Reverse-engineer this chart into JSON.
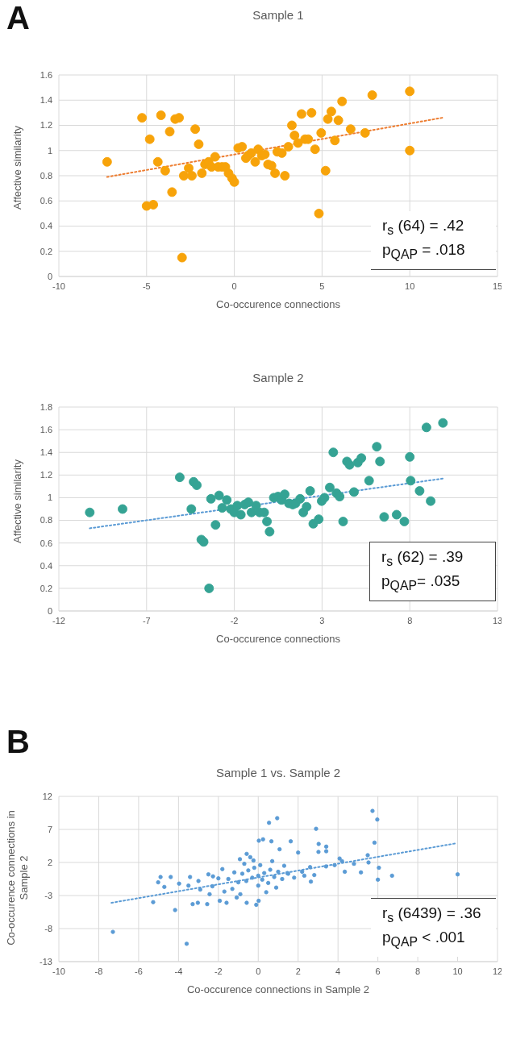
{
  "chart_data": [
    {
      "type": "scatter",
      "title": "Sample 1",
      "xlabel": "Co-occurence connections",
      "ylabel": "Affective similarity",
      "xlim": [
        -10,
        15
      ],
      "xticks": [
        -10,
        -5,
        0,
        5,
        10,
        15
      ],
      "ylim": [
        0,
        1.6
      ],
      "yticks": [
        0,
        0.2,
        0.4,
        0.6,
        0.8,
        1,
        1.2,
        1.4,
        1.6
      ],
      "grid": true,
      "marker": "circle",
      "annotations": [
        "r$_{s}$ (64) = .42",
        "p$_{QAP}$ = .018",
        "A"
      ],
      "series": [
        {
          "color": "#f7a30a",
          "x": [
            -7.25,
            -5.26,
            -5.0,
            -4.82,
            -4.62,
            -4.36,
            -4.18,
            -3.94,
            -3.68,
            -3.55,
            -3.37,
            -3.15,
            -2.98,
            -2.88,
            -2.6,
            -2.42,
            -2.23,
            -2.03,
            -1.85,
            -1.67,
            -1.47,
            -1.3,
            -1.1,
            -0.92,
            -0.7,
            -0.51,
            -0.33,
            -0.13,
            0,
            0.22,
            0.44,
            0.66,
            0.79,
            0.97,
            1.19,
            1.36,
            1.56,
            1.74,
            1.92,
            2.12,
            2.32,
            2.45,
            2.71,
            2.88,
            3.08,
            3.28,
            3.43,
            3.63,
            3.83,
            4.03,
            4.21,
            4.4,
            4.6,
            4.82,
            4.95,
            5.2,
            5.33,
            5.53,
            5.73,
            5.93,
            6.14,
            6.63,
            7.45,
            7.86,
            10,
            10
          ],
          "values": [
            0.91,
            1.26,
            0.56,
            1.09,
            0.57,
            0.91,
            1.28,
            0.84,
            1.15,
            0.67,
            1.25,
            1.26,
            0.15,
            0.8,
            0.86,
            0.8,
            1.17,
            1.05,
            0.82,
            0.89,
            0.91,
            0.87,
            0.95,
            0.87,
            0.87,
            0.87,
            0.82,
            0.78,
            0.75,
            1.02,
            1.03,
            0.94,
            0.96,
            0.98,
            0.91,
            1.01,
            0.96,
            0.97,
            0.89,
            0.88,
            0.82,
            0.99,
            0.98,
            0.8,
            1.03,
            1.2,
            1.12,
            1.06,
            1.29,
            1.09,
            1.09,
            1.3,
            1.01,
            0.5,
            1.14,
            0.84,
            1.25,
            1.31,
            1.08,
            1.24,
            1.39,
            1.17,
            1.14,
            1.44,
            1.47,
            1.0
          ]
        },
        {
          "type": "line",
          "color": "#ed7d31",
          "line_style": "dotted",
          "marker": "none",
          "x": [
            -7.25,
            11.85
          ],
          "values": [
            0.79,
            1.26
          ]
        }
      ]
    },
    {
      "type": "scatter",
      "title": "Sample 2",
      "xlabel": "Co-occurence connections",
      "ylabel": "Affective similarity",
      "xlim": [
        -12,
        13
      ],
      "xticks": [
        -12,
        -7,
        -2,
        3,
        8,
        13
      ],
      "ylim": [
        0,
        1.8
      ],
      "yticks": [
        0,
        0.2,
        0.4,
        0.6,
        0.8,
        1,
        1.2,
        1.4,
        1.6,
        1.8
      ],
      "grid": true,
      "marker": "circle",
      "annotations": [
        "r$_{s}$ (62) = .39",
        "p$_{QAP}$= .035"
      ],
      "series": [
        {
          "color": "#35a394",
          "x": [
            -10.24,
            -8.37,
            -5.11,
            -4.45,
            -4.32,
            -4.14,
            -3.88,
            -3.75,
            -3.44,
            -3.33,
            -3.07,
            -2.87,
            -2.69,
            -2.43,
            -2.2,
            -2.0,
            -1.83,
            -1.63,
            -1.41,
            -1.2,
            -1.02,
            -0.76,
            -0.56,
            -0.3,
            -0.14,
            0.01,
            0.25,
            0.49,
            0.69,
            0.87,
            1.11,
            1.33,
            1.49,
            1.75,
            1.93,
            2.12,
            2.32,
            2.5,
            2.81,
            2.98,
            3.14,
            3.44,
            3.64,
            3.82,
            4.0,
            4.2,
            4.42,
            4.57,
            4.82,
            5.04,
            5.24,
            5.68,
            6.12,
            6.3,
            6.54,
            7.25,
            7.69,
            8.0,
            8.05,
            8.56,
            8.95,
            9.19,
            9.89
          ],
          "values": [
            0.87,
            0.9,
            1.18,
            0.9,
            1.14,
            1.11,
            0.63,
            0.61,
            0.2,
            0.99,
            0.76,
            1.02,
            0.91,
            0.98,
            0.9,
            0.87,
            0.93,
            0.85,
            0.94,
            0.96,
            0.87,
            0.93,
            0.87,
            0.87,
            0.79,
            0.7,
            1.0,
            1.01,
            0.98,
            1.03,
            0.95,
            0.94,
            0.95,
            0.99,
            0.87,
            0.92,
            1.06,
            0.77,
            0.81,
            0.97,
            1.0,
            1.09,
            1.4,
            1.04,
            1.01,
            0.79,
            1.32,
            1.29,
            1.05,
            1.31,
            1.35,
            1.15,
            1.45,
            1.32,
            0.83,
            0.85,
            0.79,
            1.36,
            1.15,
            1.06,
            1.62,
            0.97,
            1.66
          ]
        },
        {
          "type": "line",
          "color": "#5b9bd5",
          "line_style": "dotted",
          "marker": "none",
          "x": [
            -10.24,
            9.93
          ],
          "values": [
            0.73,
            1.17
          ]
        }
      ]
    },
    {
      "type": "scatter",
      "title": "Sample 1 vs. Sample 2",
      "xlabel": "Co-occurence connections in Sample 2",
      "ylabel": "Co-occurence connections in Sample 2",
      "xlim": [
        -10,
        12
      ],
      "xticks": [
        -10,
        -8,
        -6,
        -4,
        -2,
        0,
        2,
        4,
        6,
        8,
        10,
        12
      ],
      "ylim": [
        -13,
        12
      ],
      "yticks": [
        -13,
        -8,
        -3,
        2,
        7,
        12
      ],
      "grid": true,
      "marker": "circle",
      "annotations": [
        "r$_{s}$ (6439) = .36",
        "p$_{QAP}$ < .001",
        "B"
      ],
      "series": [
        {
          "color": "#5b9bd5",
          "x": [
            -7.29,
            -3.59,
            -4.17,
            -5.27,
            -4.9,
            -4.39,
            -5.02,
            -4.71,
            -3.97,
            -3.42,
            -3.29,
            -3.03,
            -2.56,
            -2.91,
            -2.44,
            -1.93,
            -2.27,
            -1.59,
            -1.08,
            -0.58,
            -0.1,
            0.02,
            -0.92,
            -0.58,
            -0.24,
            0.03,
            0.24,
            0.54,
            0.95,
            0.66,
            1.07,
            1.63,
            2.0,
            2.9,
            3.03,
            3.41,
            3.02,
            3.41,
            3.83,
            4.08,
            4.34,
            5.15,
            5.53,
            5.49,
            5.73,
            5.97,
            5.83,
            6.05,
            6.0,
            6.71,
            10.0,
            2.81,
            2.31,
            1.46,
            2.64,
            -1.5,
            -1.2,
            -1.0,
            -0.8,
            -0.6,
            -0.5,
            -0.3,
            -0.2,
            0,
            0,
            0.1,
            0.2,
            0.3,
            0.5,
            0.6,
            0.8,
            1.0,
            1.2,
            1.5,
            1.8,
            2.2,
            -2.0,
            -2.5,
            -1.8,
            -1.3,
            -0.9,
            0.4,
            0.7,
            -0.4,
            0.9,
            2.6,
            3.4,
            4.2,
            4.8,
            -3.5,
            -3.0,
            -2.3,
            -1.7,
            1.3,
            -0.7
          ],
          "values": [
            -8.5,
            -10.3,
            -5.2,
            -4.0,
            -0.2,
            -0.2,
            -1.0,
            -1.7,
            -1.2,
            -0.2,
            -4.3,
            -4.1,
            -4.3,
            -2.1,
            -2.8,
            -3.8,
            -0.1,
            -4.1,
            -3.3,
            -4.1,
            -4.4,
            -3.8,
            2.5,
            3.3,
            2.3,
            5.3,
            5.5,
            8.0,
            8.7,
            5.2,
            4.0,
            5.2,
            3.5,
            7.1,
            4.8,
            4.4,
            3.6,
            3.7,
            1.6,
            2.6,
            0.6,
            0.5,
            2.0,
            3.1,
            9.8,
            8.5,
            5.0,
            1.2,
            -0.6,
            0.0,
            0.2,
            0.1,
            0.0,
            0.4,
            -0.9,
            -0.5,
            0.5,
            -1.0,
            0.3,
            -0.8,
            0.8,
            -0.3,
            1.2,
            0.0,
            -1.5,
            1.6,
            -0.6,
            0.4,
            -1.1,
            0.9,
            -0.2,
            0.6,
            -0.5,
            0.3,
            -0.3,
            0.6,
            -0.4,
            0.2,
            1.0,
            -2.0,
            -2.8,
            -2.5,
            2.2,
            2.8,
            -1.8,
            1.3,
            1.4,
            2.2,
            1.8,
            -1.5,
            -0.8,
            -1.6,
            -2.4,
            1.5,
            1.8
          ]
        },
        {
          "type": "line",
          "color": "#5b9bd5",
          "line_style": "dotted",
          "marker": "none",
          "x": [
            -7.36,
            9.93
          ],
          "values": [
            -4.1,
            4.9
          ]
        }
      ]
    }
  ]
}
